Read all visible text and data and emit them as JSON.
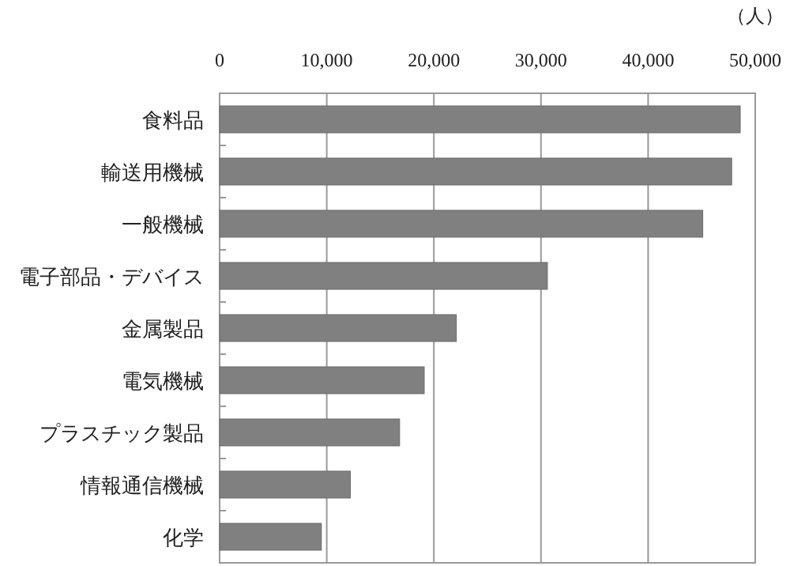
{
  "chart_data": {
    "type": "bar",
    "orientation": "horizontal",
    "xlabel": "（人）",
    "categories": [
      "食料品",
      "輸送用機械",
      "一般機械",
      "電子部品・デバイス",
      "金属製品",
      "電気機械",
      "プラスチック製品",
      "情報通信機械",
      "化学"
    ],
    "values": [
      48600,
      47800,
      45100,
      30600,
      22100,
      19100,
      16800,
      12200,
      9500
    ],
    "color": "#808080",
    "xlim": [
      0,
      50000
    ],
    "xticks": [
      0,
      {
        "value": 10000,
        "label": "10,000"
      },
      {
        "value": 20000,
        "label": "20,000"
      },
      {
        "value": 30000,
        "label": "30,000"
      },
      {
        "value": 40000,
        "label": "40,000"
      },
      {
        "value": 50000,
        "label": "50,000"
      }
    ],
    "grid": "x"
  }
}
